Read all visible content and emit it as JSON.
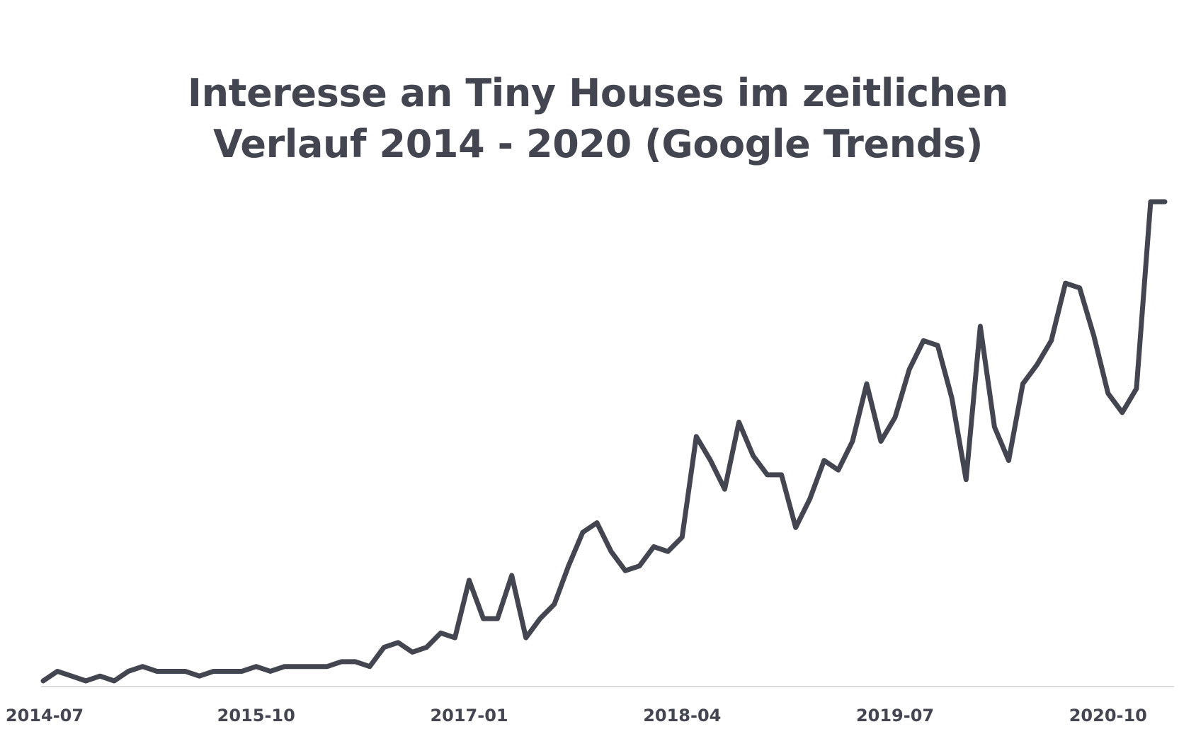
{
  "chart_data": {
    "type": "line",
    "title": "Interesse an Tiny Houses im zeitlichen Verlauf 2014 - 2020 (Google Trends)",
    "title_lines": [
      "Interesse an Tiny Houses im zeitlichen",
      "Verlauf 2014 - 2020 (Google Trends)"
    ],
    "xlabel": "",
    "ylabel": "",
    "x_start": "2014-07",
    "x_end": "2021-02",
    "x_ticks": [
      "2014-07",
      "2015-10",
      "2017-01",
      "2018-04",
      "2019-07",
      "2020-10"
    ],
    "ylim": [
      0,
      100
    ],
    "grid": false,
    "legend": "none",
    "colors": {
      "line": "#434651",
      "axis": "#d9dbdf",
      "text": "#434651",
      "background": "#ffffff"
    },
    "series": [
      {
        "x": [
          "2014-07",
          "2014-08",
          "2014-09",
          "2014-10",
          "2014-11",
          "2014-12",
          "2015-01",
          "2015-02",
          "2015-03",
          "2015-04",
          "2015-05",
          "2015-06",
          "2015-07",
          "2015-08",
          "2015-09",
          "2015-10",
          "2015-11",
          "2015-12",
          "2016-01",
          "2016-02",
          "2016-03",
          "2016-04",
          "2016-05",
          "2016-06",
          "2016-07",
          "2016-08",
          "2016-09",
          "2016-10",
          "2016-11",
          "2016-12",
          "2017-01",
          "2017-02",
          "2017-03",
          "2017-04",
          "2017-05",
          "2017-06",
          "2017-07",
          "2017-08",
          "2017-09",
          "2017-10",
          "2017-11",
          "2017-12",
          "2018-01",
          "2018-02",
          "2018-03",
          "2018-04",
          "2018-05",
          "2018-06",
          "2018-07",
          "2018-08",
          "2018-09",
          "2018-10",
          "2018-11",
          "2018-12",
          "2019-01",
          "2019-02",
          "2019-03",
          "2019-04",
          "2019-05",
          "2019-06",
          "2019-07",
          "2019-08",
          "2019-09",
          "2019-10",
          "2019-11",
          "2019-12",
          "2020-01",
          "2020-02",
          "2020-03",
          "2020-04",
          "2020-05",
          "2020-06",
          "2020-07",
          "2020-08",
          "2020-09",
          "2020-10",
          "2020-11",
          "2020-12",
          "2021-01",
          "2021-02"
        ],
        "values": [
          0,
          2,
          1,
          0,
          1,
          0,
          2,
          3,
          2,
          2,
          2,
          1,
          2,
          2,
          2,
          3,
          2,
          3,
          3,
          3,
          3,
          4,
          4,
          3,
          7,
          8,
          6,
          7,
          10,
          9,
          21,
          13,
          13,
          22,
          9,
          13,
          16,
          24,
          31,
          33,
          27,
          23,
          24,
          28,
          27,
          30,
          51,
          46,
          40,
          54,
          47,
          43,
          43,
          32,
          38,
          46,
          44,
          50,
          62,
          50,
          55,
          65,
          71,
          70,
          59,
          42,
          74,
          53,
          46,
          62,
          66,
          71,
          83,
          82,
          72,
          60,
          56,
          61,
          100,
          100
        ]
      }
    ]
  }
}
